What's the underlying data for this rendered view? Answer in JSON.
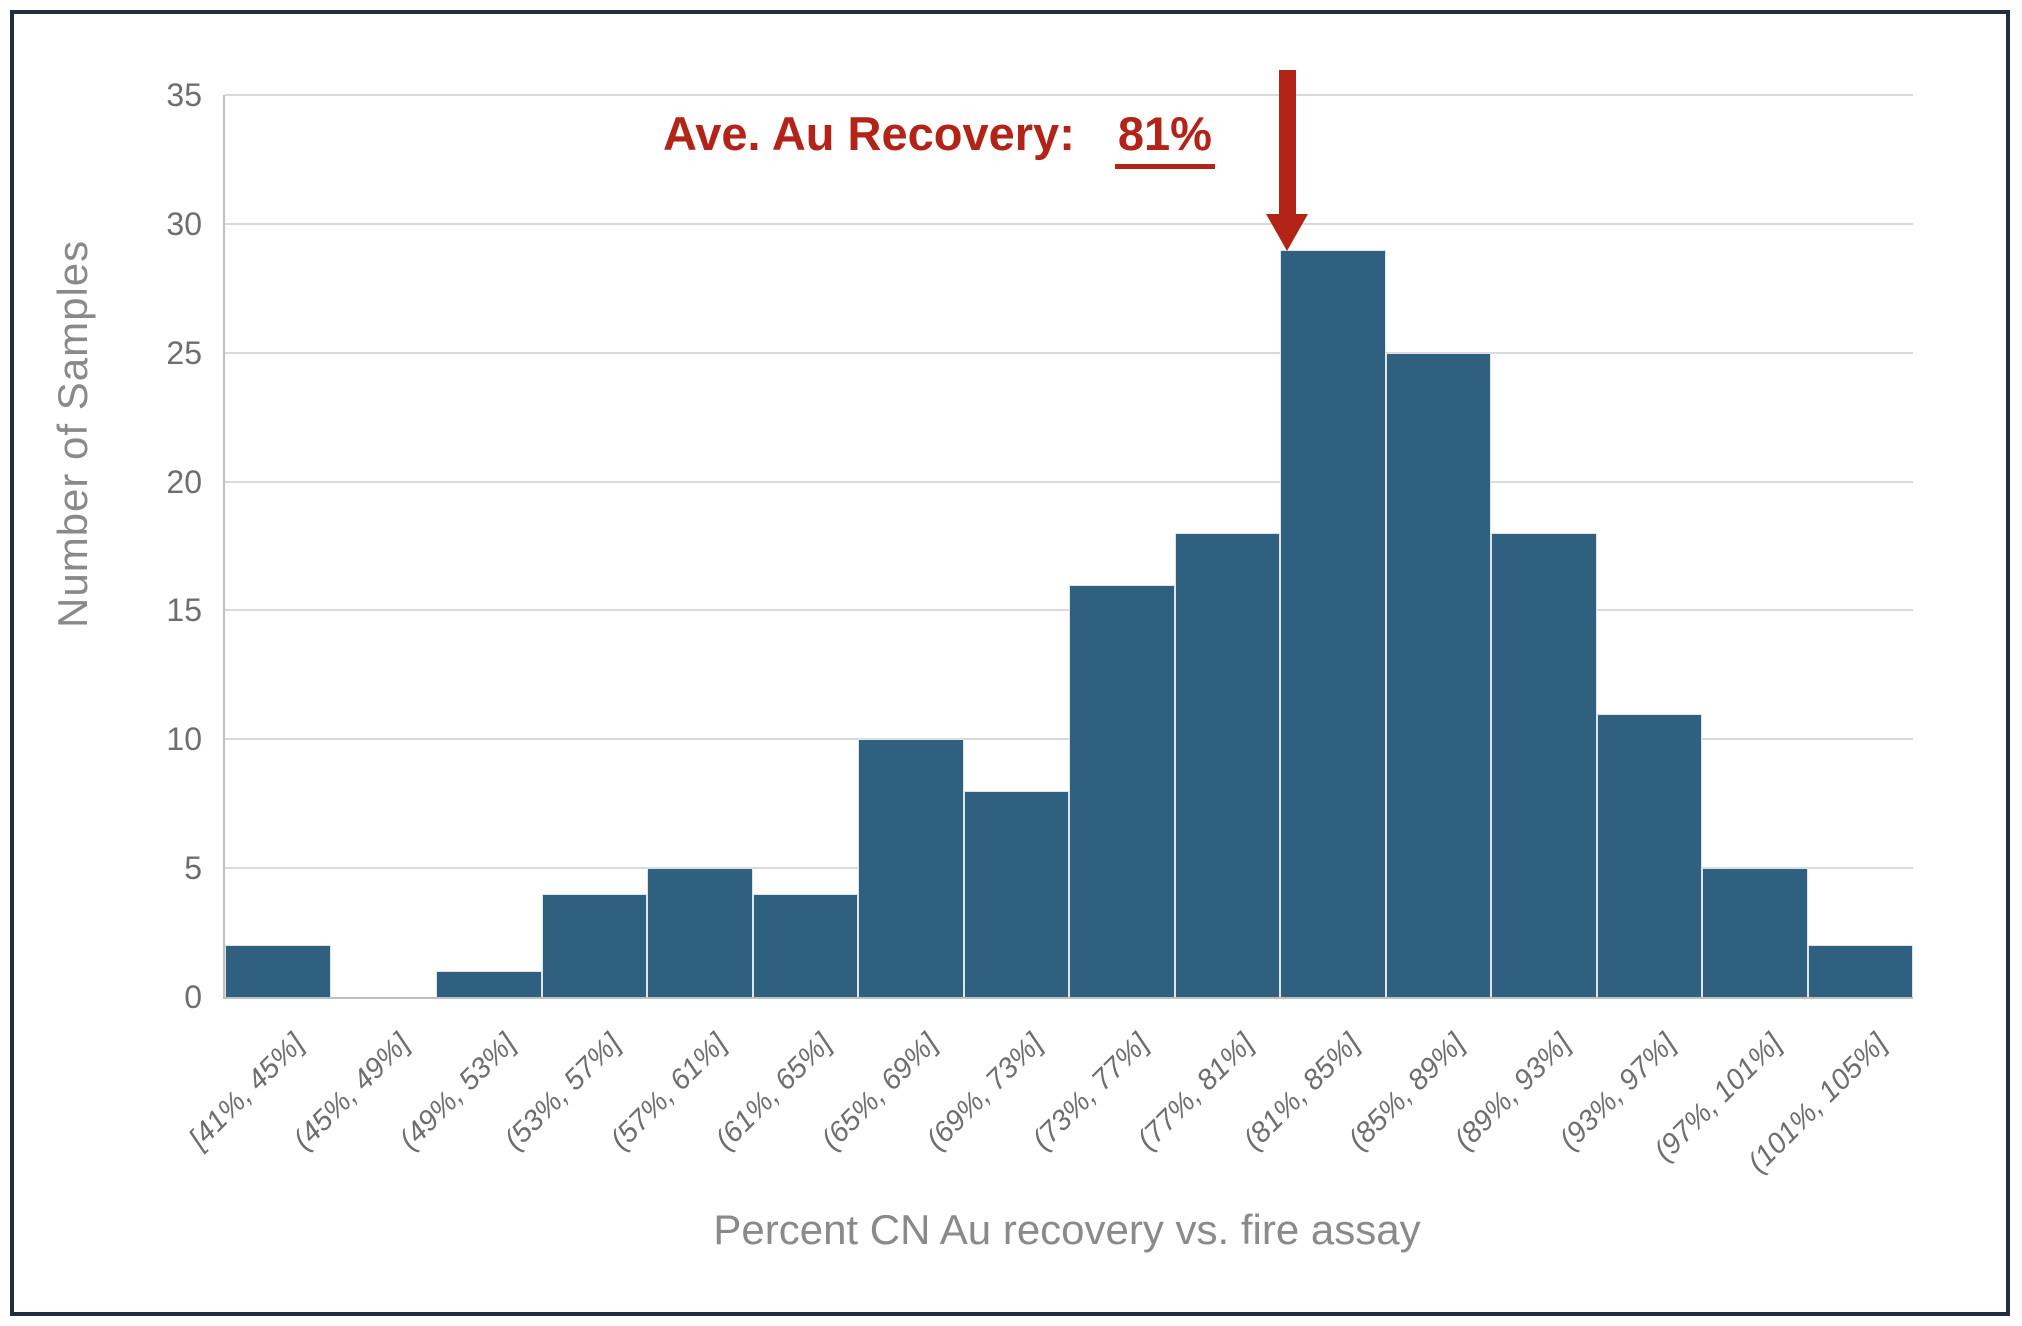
{
  "colors": {
    "background": "#ffffff",
    "frame": "#1e2f42",
    "bar": "#2f607f",
    "bar_edge": "#dde4ea",
    "gridline": "#d9d9d9",
    "axis_line": "#bfbfbf",
    "tick_text": "#6e6e6e",
    "title_text": "#8a8a8a",
    "accent_red": "#b22318"
  },
  "annotation": {
    "label": "Ave. Au Recovery:",
    "value": "81%"
  },
  "y_axis": {
    "title": "Number of Samples",
    "tick_labels": [
      0,
      5,
      10,
      15,
      20,
      25,
      30,
      35
    ]
  },
  "x_axis": {
    "title": "Percent CN Au recovery vs. fire assay"
  },
  "chart_data": {
    "type": "bar",
    "title": "",
    "categories": [
      "[41%, 45%]",
      "(45%, 49%]",
      "(49%, 53%]",
      "(53%, 57%]",
      "(57%, 61%]",
      "(61%, 65%]",
      "(65%, 69%]",
      "(69%, 73%]",
      "(73%, 77%]",
      "(77%, 81%]",
      "(81%, 85%]",
      "(85%, 89%]",
      "(89%, 93%]",
      "(93%, 97%]",
      "(97%, 101%]",
      "(101%, 105%]"
    ],
    "values": [
      2,
      0,
      1,
      4,
      5,
      4,
      10,
      8,
      16,
      18,
      29,
      25,
      18,
      11,
      5,
      2
    ],
    "xlabel": "Percent CN Au recovery vs. fire assay",
    "ylabel": "Number of Samples",
    "ylim": [
      0,
      35
    ],
    "ytick_step": 5,
    "grid": "horizontal",
    "legend": "none",
    "annotation": {
      "text": "Ave. Au Recovery:",
      "value": "81%",
      "arrow": "points down at top of (81%, 85%] bar"
    }
  }
}
